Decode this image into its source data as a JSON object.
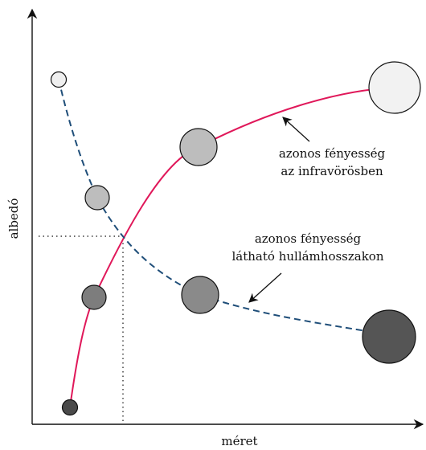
{
  "axes": {
    "xlabel": "méret",
    "ylabel": "albedó"
  },
  "annotations": {
    "infrared_line1": "azonos fényesség",
    "infrared_line2": "az infravörösben",
    "visible_line1": "azonos fényesség",
    "visible_line2": "látható hullámhosszakon"
  },
  "colors": {
    "infrared_curve": "#e0185a",
    "visible_curve": "#1f4e79",
    "axis": "#111111"
  },
  "chart_data": {
    "type": "scatter",
    "xlabel": "méret",
    "ylabel": "albedó",
    "series": [
      {
        "name": "azonos fényesség az infravörösben",
        "style": "solid",
        "points": [
          {
            "size": 0.11,
            "albedo": 0.04,
            "shade": "#4a4a4a"
          },
          {
            "size": 0.19,
            "albedo": 0.34,
            "shade": "#7d7d7d"
          },
          {
            "size": 0.46,
            "albedo": 0.71,
            "shade": "#bdbdbd"
          },
          {
            "size": 0.92,
            "albedo": 0.88,
            "shade": "#f2f2f2"
          }
        ]
      },
      {
        "name": "azonos fényesség látható hullámhosszakon",
        "style": "dashed",
        "points": [
          {
            "size": 0.07,
            "albedo": 0.88,
            "shade": "#efefef"
          },
          {
            "size": 0.19,
            "albedo": 0.57,
            "shade": "#bdbdbd"
          },
          {
            "size": 0.46,
            "albedo": 0.34,
            "shade": "#8a8a8a"
          },
          {
            "size": 0.92,
            "albedo": 0.22,
            "shade": "#555555"
          }
        ]
      }
    ],
    "reference_point": {
      "size": 0.23,
      "albedo": 0.48
    },
    "grid": false
  }
}
